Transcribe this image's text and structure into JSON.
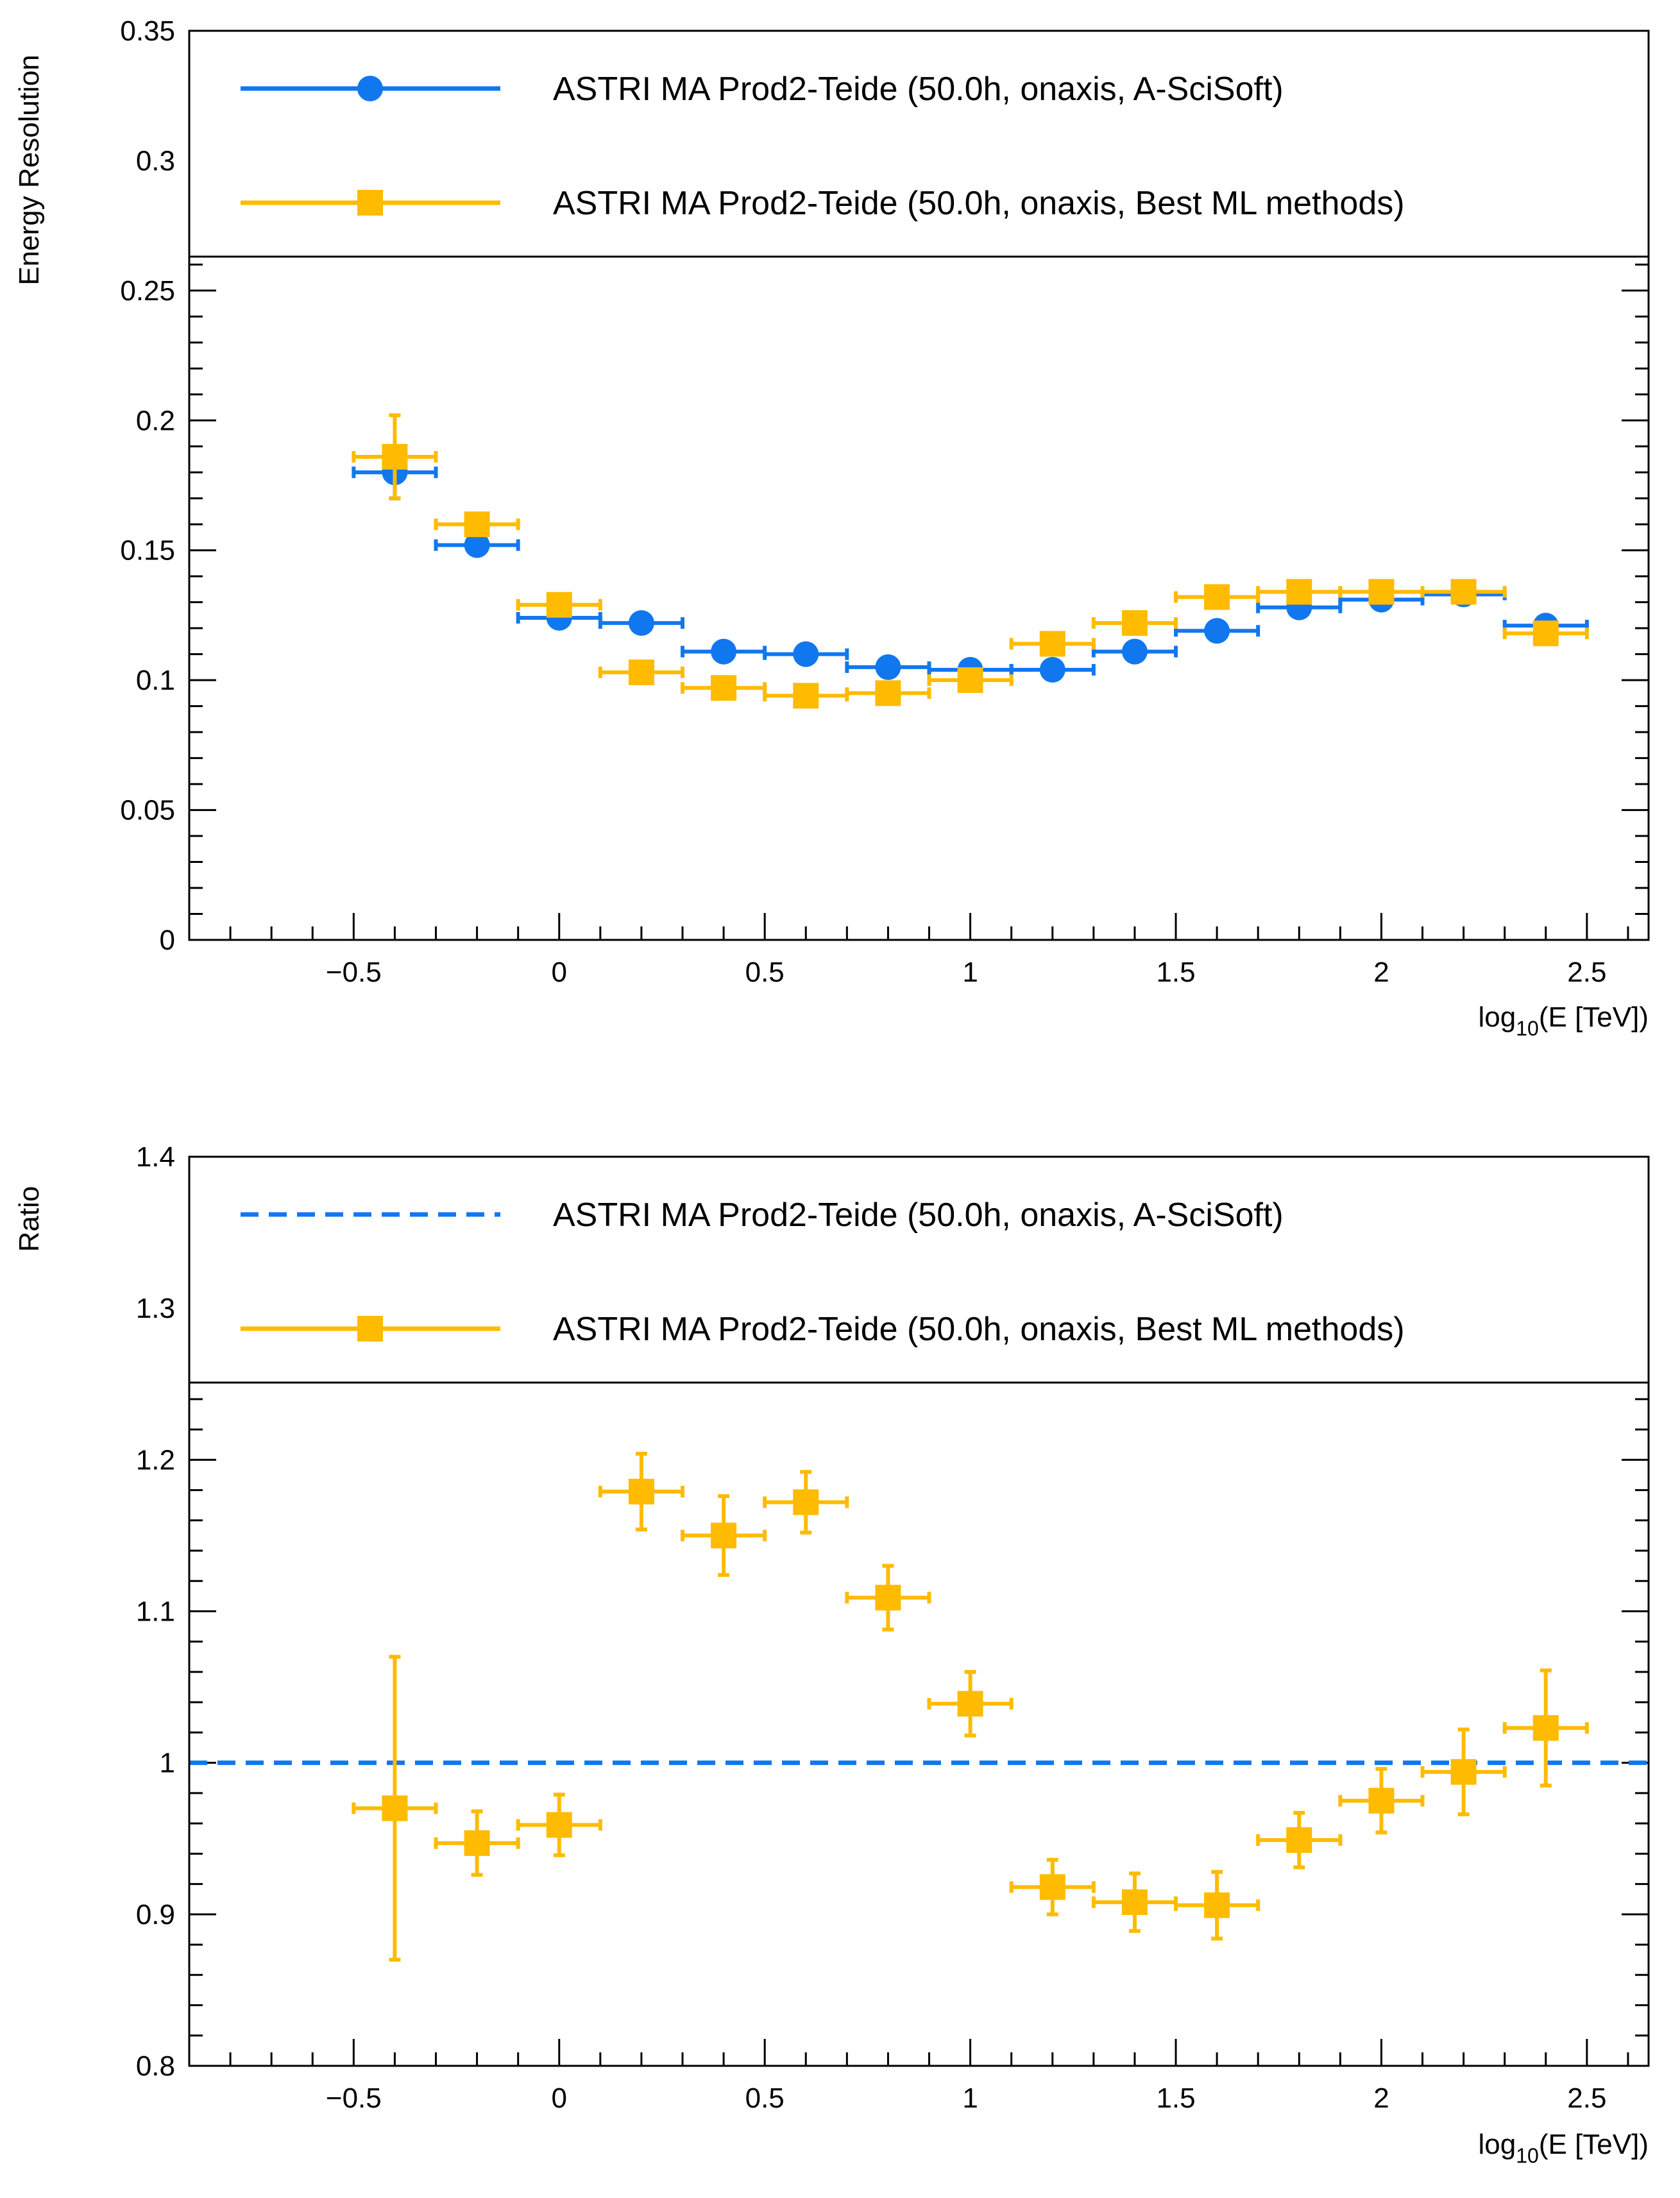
{
  "colors": {
    "blue": "#1177ee",
    "yellow": "#ffbb00",
    "axis": "#000000",
    "background": "#ffffff"
  },
  "chart_data": [
    {
      "type": "scatter",
      "title": "",
      "xlabel": "log",
      "xlabel_sub": "10",
      "xlabel_tail": "(E [TeV])",
      "ylabel": "Energy Resolution",
      "xlim": [
        -0.9,
        2.65
      ],
      "ylim": [
        0,
        0.35
      ],
      "x_ticks": [
        -0.5,
        0,
        0.5,
        1,
        1.5,
        2,
        2.5
      ],
      "x_tick_labels": [
        "−0.5",
        "0",
        "0.5",
        "1",
        "1.5",
        "2",
        "2.5"
      ],
      "y_ticks": [
        0,
        0.05,
        0.1,
        0.15,
        0.2,
        0.25,
        0.3,
        0.35
      ],
      "y_tick_labels": [
        "0",
        "0.05",
        "0.1",
        "0.15",
        "0.2",
        "0.25",
        "0.3",
        "0.35"
      ],
      "legend_position": "top",
      "series": [
        {
          "name": "ASTRI MA Prod2-Teide (50.0h, onaxis, A-SciSoft)",
          "marker": "circle",
          "color_key": "blue",
          "x": [
            -0.4,
            -0.2,
            0.0,
            0.2,
            0.4,
            0.6,
            0.8,
            1.0,
            1.2,
            1.4,
            1.6,
            1.8,
            2.0,
            2.2,
            2.4
          ],
          "y": [
            0.18,
            0.152,
            0.124,
            0.122,
            0.111,
            0.11,
            0.105,
            0.104,
            0.104,
            0.111,
            0.119,
            0.128,
            0.131,
            0.133,
            0.121
          ],
          "xerr": 0.1,
          "yerr": [
            0.01,
            0.002,
            0.002,
            0.002,
            0.002,
            0.002,
            0.002,
            0.002,
            0.002,
            0.002,
            0.002,
            0.002,
            0.002,
            0.002,
            0.002
          ]
        },
        {
          "name": "ASTRI MA Prod2-Teide (50.0h, onaxis, Best ML methods)",
          "marker": "square",
          "color_key": "yellow",
          "x": [
            -0.4,
            -0.2,
            0.0,
            0.2,
            0.4,
            0.6,
            0.8,
            1.0,
            1.2,
            1.4,
            1.6,
            1.8,
            2.0,
            2.2,
            2.4
          ],
          "y": [
            0.186,
            0.16,
            0.129,
            0.103,
            0.097,
            0.094,
            0.095,
            0.1,
            0.114,
            0.122,
            0.132,
            0.134,
            0.134,
            0.134,
            0.118
          ],
          "xerr": 0.1,
          "yerr": [
            0.016,
            0.004,
            0.003,
            0.003,
            0.003,
            0.003,
            0.003,
            0.003,
            0.003,
            0.003,
            0.003,
            0.003,
            0.003,
            0.003,
            0.003
          ]
        }
      ]
    },
    {
      "type": "scatter",
      "title": "",
      "xlabel": "log",
      "xlabel_sub": "10",
      "xlabel_tail": "(E [TeV])",
      "ylabel": "Ratio",
      "xlim": [
        -0.9,
        2.65
      ],
      "ylim": [
        0.8,
        1.4
      ],
      "x_ticks": [
        -0.5,
        0,
        0.5,
        1,
        1.5,
        2,
        2.5
      ],
      "x_tick_labels": [
        "−0.5",
        "0",
        "0.5",
        "1",
        "1.5",
        "2",
        "2.5"
      ],
      "y_ticks": [
        0.8,
        0.9,
        1.0,
        1.1,
        1.2,
        1.3,
        1.4
      ],
      "y_tick_labels": [
        "0.8",
        "0.9",
        "1",
        "1.1",
        "1.2",
        "1.3",
        "1.4"
      ],
      "legend_position": "top",
      "series": [
        {
          "name": "ASTRI MA Prod2-Teide (50.0h, onaxis, A-SciSoft)",
          "marker": "dashed-line",
          "color_key": "blue",
          "reference_value": 1.0
        },
        {
          "name": "ASTRI MA Prod2-Teide (50.0h, onaxis, Best ML methods)",
          "marker": "square",
          "color_key": "yellow",
          "x": [
            -0.4,
            -0.2,
            0.0,
            0.2,
            0.4,
            0.6,
            0.8,
            1.0,
            1.2,
            1.4,
            1.6,
            1.8,
            2.0,
            2.2,
            2.4
          ],
          "y": [
            0.97,
            0.947,
            0.959,
            1.179,
            1.15,
            1.172,
            1.109,
            1.039,
            0.918,
            0.908,
            0.906,
            0.949,
            0.975,
            0.994,
            1.023
          ],
          "xerr": 0.1,
          "yerr": [
            0.1,
            0.021,
            0.02,
            0.025,
            0.026,
            0.02,
            0.021,
            0.021,
            0.018,
            0.019,
            0.022,
            0.018,
            0.021,
            0.028,
            0.038
          ]
        }
      ]
    }
  ]
}
